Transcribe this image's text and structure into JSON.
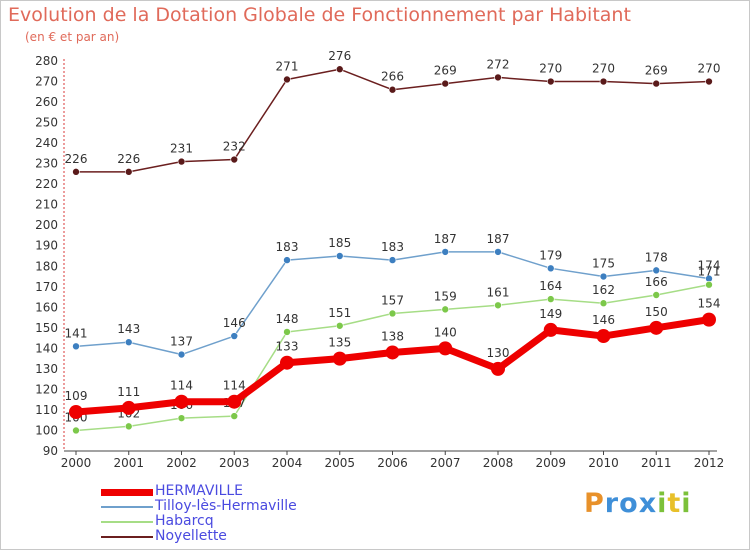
{
  "title": "Evolution de la Dotation Globale de Fonctionnement par Habitant",
  "subtitle": "(en € et par an)",
  "logo": {
    "letters": [
      "P",
      "r",
      "o",
      "x",
      "i",
      "t",
      "i"
    ],
    "colors": [
      "#e8912a",
      "#3f8fd8",
      "#3f8fd8",
      "#3f8fd8",
      "#7cc13a",
      "#e8c02a",
      "#7cc13a"
    ]
  },
  "chart_data": {
    "type": "line",
    "title": "Evolution de la Dotation Globale de Fonctionnement par Habitant",
    "subtitle": "(en € et par an)",
    "xlabel": "",
    "ylabel": "",
    "ylim": [
      90,
      280
    ],
    "yticks": [
      90,
      100,
      110,
      120,
      130,
      140,
      150,
      160,
      170,
      180,
      190,
      200,
      210,
      220,
      230,
      240,
      250,
      260,
      270,
      280
    ],
    "categories": [
      "2000",
      "2001",
      "2002",
      "2003",
      "2004",
      "2005",
      "2006",
      "2007",
      "2008",
      "2009",
      "2010",
      "2011",
      "2012"
    ],
    "series": [
      {
        "name": "Noyellette",
        "color": "#6b1f1f",
        "marker": "#5a1a1a",
        "values": [
          226,
          226,
          231,
          232,
          271,
          276,
          266,
          269,
          272,
          270,
          270,
          269,
          270
        ],
        "emphasis": false
      },
      {
        "name": "Tilloy-lès-Hermaville",
        "color": "#6fa0cc",
        "marker": "#3d7fc0",
        "values": [
          141,
          143,
          137,
          146,
          183,
          185,
          183,
          187,
          187,
          179,
          175,
          178,
          174
        ],
        "emphasis": false
      },
      {
        "name": "Habarcq",
        "color": "#a6dd86",
        "marker": "#7cc84a",
        "values": [
          100,
          102,
          106,
          107,
          148,
          151,
          157,
          159,
          161,
          164,
          162,
          166,
          171
        ],
        "emphasis": false
      },
      {
        "name": "HERMAVILLE",
        "color": "#ee0000",
        "marker": "#ee0000",
        "values": [
          109,
          111,
          114,
          114,
          133,
          135,
          138,
          140,
          130,
          149,
          146,
          150,
          154
        ],
        "emphasis": true
      }
    ],
    "legend": [
      "HERMAVILLE",
      "Tilloy-lès-Hermaville",
      "Habarcq",
      "Noyellette"
    ],
    "legend_position": "bottom-left",
    "grid": false
  }
}
